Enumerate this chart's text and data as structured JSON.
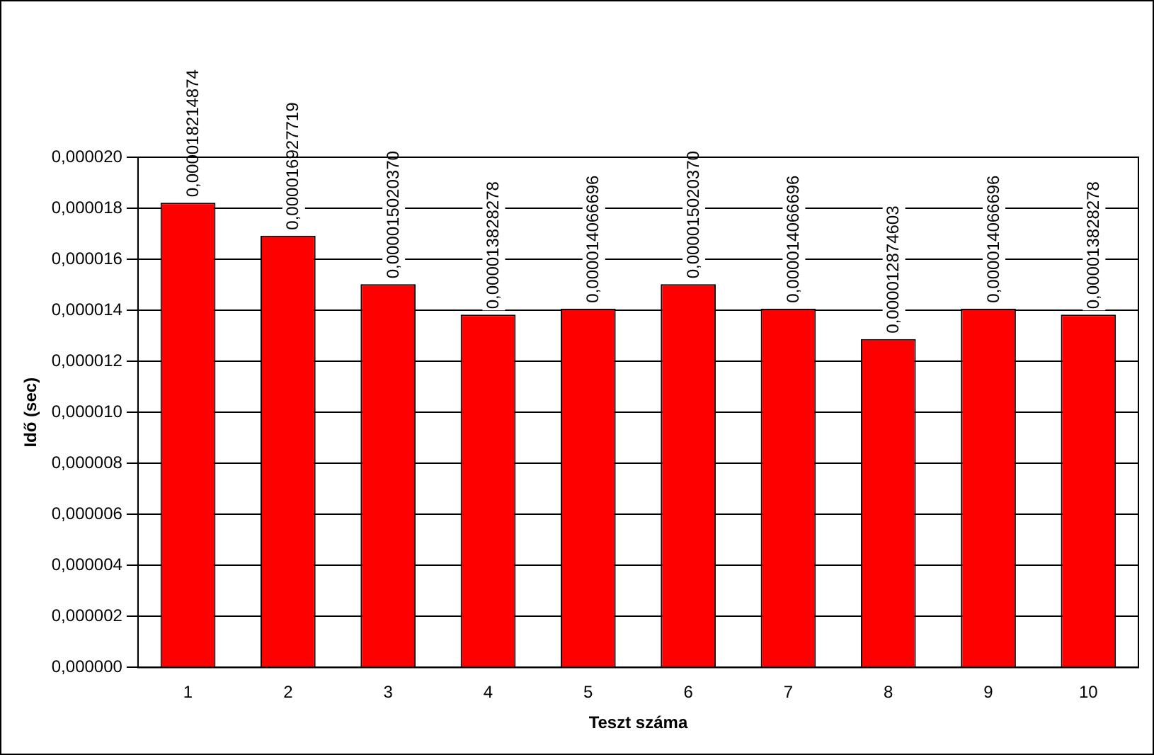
{
  "chart_data": {
    "type": "bar",
    "xlabel": "Teszt száma",
    "ylabel": "Idő (sec)",
    "categories": [
      "1",
      "2",
      "3",
      "4",
      "5",
      "6",
      "7",
      "8",
      "9",
      "10"
    ],
    "values": [
      1.8214874e-05,
      1.6927719e-05,
      1.502037e-05,
      1.3828278e-05,
      1.4066696e-05,
      1.502037e-05,
      1.4066696e-05,
      1.2874603e-05,
      1.4066696e-05,
      1.3828278e-05
    ],
    "value_labels": [
      "0,000018214874",
      "0,000016927719",
      "0,000015020370",
      "0,000013828278",
      "0,000014066696",
      "0,000015020370",
      "0,000014066696",
      "0,000012874603",
      "0,000014066696",
      "0,000013828278"
    ],
    "color": "#ff0000",
    "ylim": [
      0,
      2e-05
    ],
    "yticks": [
      {
        "value": 0,
        "label": "0,000000"
      },
      {
        "value": 2e-06,
        "label": "0,000002"
      },
      {
        "value": 4e-06,
        "label": "0,000004"
      },
      {
        "value": 6e-06,
        "label": "0,000006"
      },
      {
        "value": 8e-06,
        "label": "0,000008"
      },
      {
        "value": 1e-05,
        "label": "0,000010"
      },
      {
        "value": 1.2e-05,
        "label": "0,000012"
      },
      {
        "value": 1.4e-05,
        "label": "0,000014"
      },
      {
        "value": 1.6e-05,
        "label": "0,000016"
      },
      {
        "value": 1.8e-05,
        "label": "0,000018"
      },
      {
        "value": 2e-05,
        "label": "0,000020"
      }
    ],
    "grid": "y",
    "legend": false
  }
}
